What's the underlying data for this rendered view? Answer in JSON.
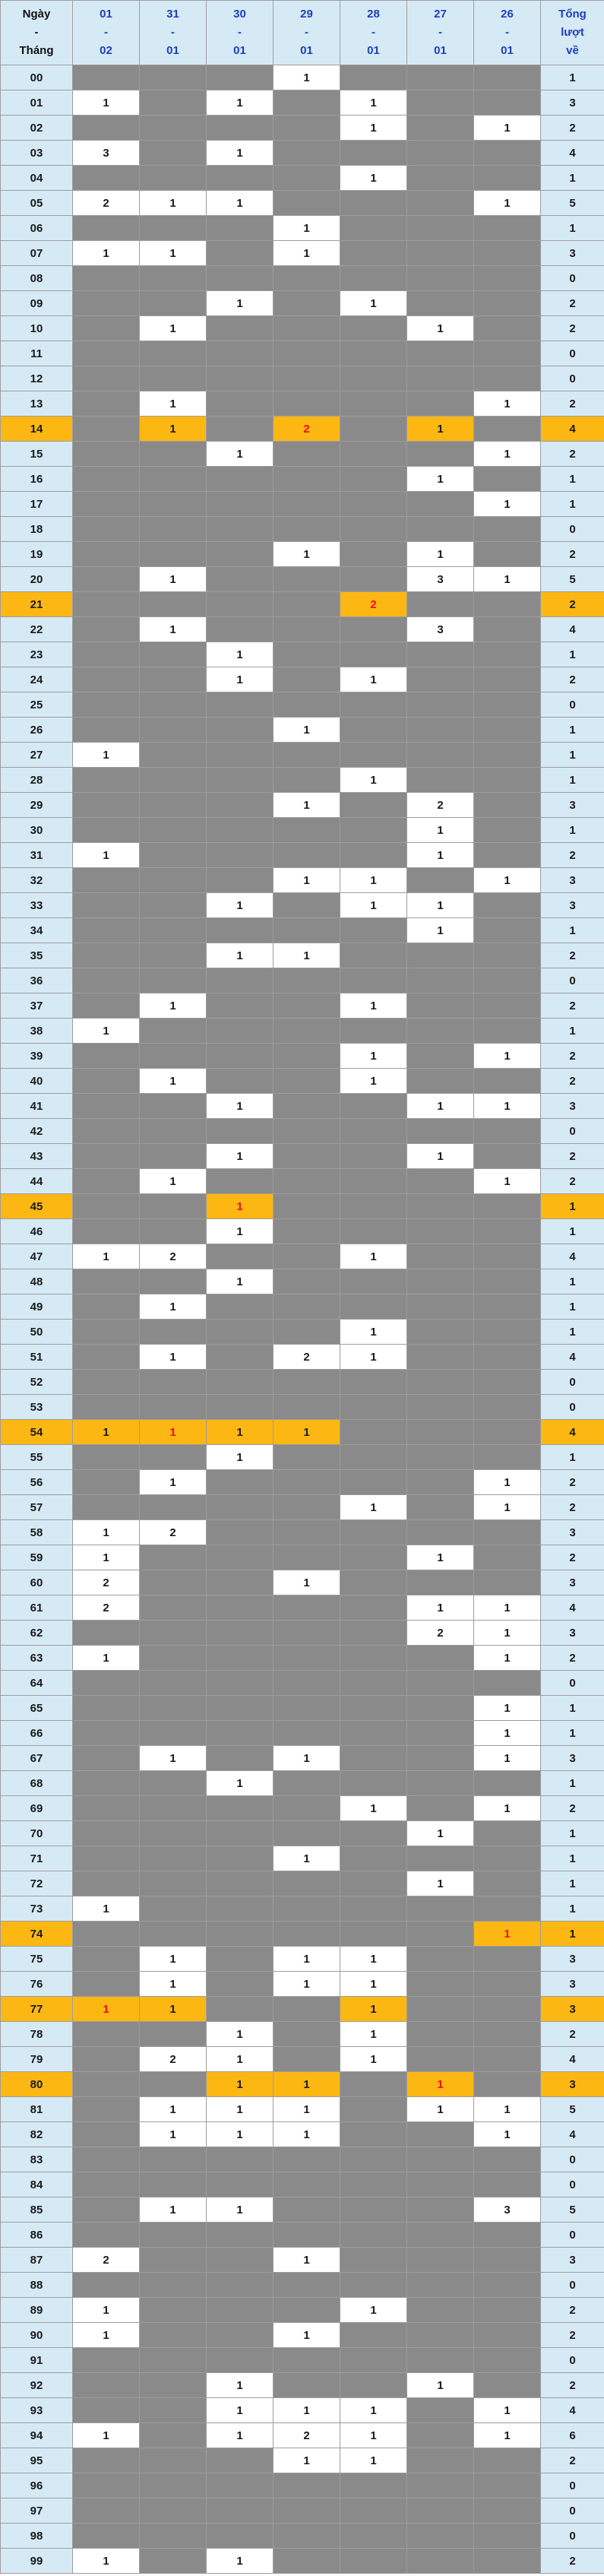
{
  "header": {
    "corner": {
      "line1": "Ngày",
      "line2": "-",
      "line3": "Tháng"
    },
    "dates": [
      {
        "day": "01",
        "sep": "-",
        "month": "02"
      },
      {
        "day": "31",
        "sep": "-",
        "month": "01"
      },
      {
        "day": "30",
        "sep": "-",
        "month": "01"
      },
      {
        "day": "29",
        "sep": "-",
        "month": "01"
      },
      {
        "day": "28",
        "sep": "-",
        "month": "01"
      },
      {
        "day": "27",
        "sep": "-",
        "month": "01"
      },
      {
        "day": "26",
        "sep": "-",
        "month": "01"
      }
    ],
    "total": {
      "line1": "Tổng",
      "line2": "lượt",
      "line3": "về"
    }
  },
  "colors": {
    "lightblue": "#d6eaf6",
    "gray": "#8a8a8a",
    "orange": "#fdb713",
    "red": "#f20d0d",
    "blue": "#1d3ebc"
  },
  "rows": [
    {
      "label": "00",
      "cells": [
        "",
        "",
        "",
        "1",
        "",
        "",
        ""
      ],
      "total": "1"
    },
    {
      "label": "01",
      "cells": [
        "1",
        "",
        "1",
        "",
        "1",
        "",
        ""
      ],
      "total": "3"
    },
    {
      "label": "02",
      "cells": [
        "",
        "",
        "",
        "",
        "1",
        "",
        "1"
      ],
      "total": "2"
    },
    {
      "label": "03",
      "cells": [
        "3",
        "",
        "1",
        "",
        "",
        "",
        ""
      ],
      "total": "4"
    },
    {
      "label": "04",
      "cells": [
        "",
        "",
        "",
        "",
        "1",
        "",
        ""
      ],
      "total": "1"
    },
    {
      "label": "05",
      "cells": [
        "2",
        "1",
        "1",
        "",
        "",
        "",
        "1"
      ],
      "total": "5"
    },
    {
      "label": "06",
      "cells": [
        "",
        "",
        "",
        "1",
        "",
        "",
        ""
      ],
      "total": "1"
    },
    {
      "label": "07",
      "cells": [
        "1",
        "1",
        "",
        "1",
        "",
        "",
        ""
      ],
      "total": "3"
    },
    {
      "label": "08",
      "cells": [
        "",
        "",
        "",
        "",
        "",
        "",
        ""
      ],
      "total": "0"
    },
    {
      "label": "09",
      "cells": [
        "",
        "",
        "1",
        "",
        "1",
        "",
        ""
      ],
      "total": "2"
    },
    {
      "label": "10",
      "cells": [
        "",
        "1",
        "",
        "",
        "",
        "1",
        ""
      ],
      "total": "2"
    },
    {
      "label": "11",
      "cells": [
        "",
        "",
        "",
        "",
        "",
        "",
        ""
      ],
      "total": "0"
    },
    {
      "label": "12",
      "cells": [
        "",
        "",
        "",
        "",
        "",
        "",
        ""
      ],
      "total": "0"
    },
    {
      "label": "13",
      "cells": [
        "",
        "1",
        "",
        "",
        "",
        "",
        "1"
      ],
      "total": "2"
    },
    {
      "label": "14",
      "cells": [
        "",
        "1",
        "",
        "2",
        "",
        "1",
        ""
      ],
      "total": "4",
      "highlight": true,
      "red": 4
    },
    {
      "label": "15",
      "cells": [
        "",
        "",
        "1",
        "",
        "",
        "",
        "1"
      ],
      "total": "2"
    },
    {
      "label": "16",
      "cells": [
        "",
        "",
        "",
        "",
        "",
        "1",
        ""
      ],
      "total": "1"
    },
    {
      "label": "17",
      "cells": [
        "",
        "",
        "",
        "",
        "",
        "",
        "1"
      ],
      "total": "1"
    },
    {
      "label": "18",
      "cells": [
        "",
        "",
        "",
        "",
        "",
        "",
        ""
      ],
      "total": "0"
    },
    {
      "label": "19",
      "cells": [
        "",
        "",
        "",
        "1",
        "",
        "1",
        ""
      ],
      "total": "2"
    },
    {
      "label": "20",
      "cells": [
        "",
        "1",
        "",
        "",
        "",
        "3",
        "1"
      ],
      "total": "5"
    },
    {
      "label": "21",
      "cells": [
        "",
        "",
        "",
        "",
        "2",
        "",
        ""
      ],
      "total": "2",
      "highlight": true,
      "red": 5
    },
    {
      "label": "22",
      "cells": [
        "",
        "1",
        "",
        "",
        "",
        "3",
        ""
      ],
      "total": "4"
    },
    {
      "label": "23",
      "cells": [
        "",
        "",
        "1",
        "",
        "",
        "",
        ""
      ],
      "total": "1"
    },
    {
      "label": "24",
      "cells": [
        "",
        "",
        "1",
        "",
        "1",
        "",
        ""
      ],
      "total": "2"
    },
    {
      "label": "25",
      "cells": [
        "",
        "",
        "",
        "",
        "",
        "",
        ""
      ],
      "total": "0"
    },
    {
      "label": "26",
      "cells": [
        "",
        "",
        "",
        "1",
        "",
        "",
        ""
      ],
      "total": "1"
    },
    {
      "label": "27",
      "cells": [
        "1",
        "",
        "",
        "",
        "",
        "",
        ""
      ],
      "total": "1"
    },
    {
      "label": "28",
      "cells": [
        "",
        "",
        "",
        "",
        "1",
        "",
        ""
      ],
      "total": "1"
    },
    {
      "label": "29",
      "cells": [
        "",
        "",
        "",
        "1",
        "",
        "2",
        ""
      ],
      "total": "3"
    },
    {
      "label": "30",
      "cells": [
        "",
        "",
        "",
        "",
        "",
        "1",
        ""
      ],
      "total": "1"
    },
    {
      "label": "31",
      "cells": [
        "1",
        "",
        "",
        "",
        "",
        "1",
        ""
      ],
      "total": "2"
    },
    {
      "label": "32",
      "cells": [
        "",
        "",
        "",
        "1",
        "1",
        "",
        "1"
      ],
      "total": "3"
    },
    {
      "label": "33",
      "cells": [
        "",
        "",
        "1",
        "",
        "1",
        "1",
        ""
      ],
      "total": "3"
    },
    {
      "label": "34",
      "cells": [
        "",
        "",
        "",
        "",
        "",
        "1",
        ""
      ],
      "total": "1"
    },
    {
      "label": "35",
      "cells": [
        "",
        "",
        "1",
        "1",
        "",
        "",
        ""
      ],
      "total": "2"
    },
    {
      "label": "36",
      "cells": [
        "",
        "",
        "",
        "",
        "",
        "",
        ""
      ],
      "total": "0"
    },
    {
      "label": "37",
      "cells": [
        "",
        "1",
        "",
        "",
        "1",
        "",
        ""
      ],
      "total": "2"
    },
    {
      "label": "38",
      "cells": [
        "1",
        "",
        "",
        "",
        "",
        "",
        ""
      ],
      "total": "1"
    },
    {
      "label": "39",
      "cells": [
        "",
        "",
        "",
        "",
        "1",
        "",
        "1"
      ],
      "total": "2"
    },
    {
      "label": "40",
      "cells": [
        "",
        "1",
        "",
        "",
        "1",
        "",
        ""
      ],
      "total": "2"
    },
    {
      "label": "41",
      "cells": [
        "",
        "",
        "1",
        "",
        "",
        "1",
        "1"
      ],
      "total": "3"
    },
    {
      "label": "42",
      "cells": [
        "",
        "",
        "",
        "",
        "",
        "",
        ""
      ],
      "total": "0"
    },
    {
      "label": "43",
      "cells": [
        "",
        "",
        "1",
        "",
        "",
        "1",
        ""
      ],
      "total": "2"
    },
    {
      "label": "44",
      "cells": [
        "",
        "1",
        "",
        "",
        "",
        "",
        "1"
      ],
      "total": "2"
    },
    {
      "label": "45",
      "cells": [
        "",
        "",
        "1",
        "",
        "",
        "",
        ""
      ],
      "total": "1",
      "highlight": true,
      "red": 3
    },
    {
      "label": "46",
      "cells": [
        "",
        "",
        "1",
        "",
        "",
        "",
        ""
      ],
      "total": "1"
    },
    {
      "label": "47",
      "cells": [
        "1",
        "2",
        "",
        "",
        "1",
        "",
        ""
      ],
      "total": "4"
    },
    {
      "label": "48",
      "cells": [
        "",
        "",
        "1",
        "",
        "",
        "",
        ""
      ],
      "total": "1"
    },
    {
      "label": "49",
      "cells": [
        "",
        "1",
        "",
        "",
        "",
        "",
        ""
      ],
      "total": "1"
    },
    {
      "label": "50",
      "cells": [
        "",
        "",
        "",
        "",
        "1",
        "",
        ""
      ],
      "total": "1"
    },
    {
      "label": "51",
      "cells": [
        "",
        "1",
        "",
        "2",
        "1",
        "",
        ""
      ],
      "total": "4"
    },
    {
      "label": "52",
      "cells": [
        "",
        "",
        "",
        "",
        "",
        "",
        ""
      ],
      "total": "0"
    },
    {
      "label": "53",
      "cells": [
        "",
        "",
        "",
        "",
        "",
        "",
        ""
      ],
      "total": "0"
    },
    {
      "label": "54",
      "cells": [
        "1",
        "1",
        "1",
        "1",
        "",
        "",
        ""
      ],
      "total": "4",
      "highlight": true,
      "red": 2
    },
    {
      "label": "55",
      "cells": [
        "",
        "",
        "1",
        "",
        "",
        "",
        ""
      ],
      "total": "1"
    },
    {
      "label": "56",
      "cells": [
        "",
        "1",
        "",
        "",
        "",
        "",
        "1"
      ],
      "total": "2"
    },
    {
      "label": "57",
      "cells": [
        "",
        "",
        "",
        "",
        "1",
        "",
        "1"
      ],
      "total": "2"
    },
    {
      "label": "58",
      "cells": [
        "1",
        "2",
        "",
        "",
        "",
        "",
        ""
      ],
      "total": "3"
    },
    {
      "label": "59",
      "cells": [
        "1",
        "",
        "",
        "",
        "",
        "1",
        ""
      ],
      "total": "2"
    },
    {
      "label": "60",
      "cells": [
        "2",
        "",
        "",
        "1",
        "",
        "",
        ""
      ],
      "total": "3"
    },
    {
      "label": "61",
      "cells": [
        "2",
        "",
        "",
        "",
        "",
        "1",
        "1"
      ],
      "total": "4"
    },
    {
      "label": "62",
      "cells": [
        "",
        "",
        "",
        "",
        "",
        "2",
        "1"
      ],
      "total": "3"
    },
    {
      "label": "63",
      "cells": [
        "1",
        "",
        "",
        "",
        "",
        "",
        "1"
      ],
      "total": "2"
    },
    {
      "label": "64",
      "cells": [
        "",
        "",
        "",
        "",
        "",
        "",
        ""
      ],
      "total": "0"
    },
    {
      "label": "65",
      "cells": [
        "",
        "",
        "",
        "",
        "",
        "",
        "1"
      ],
      "total": "1"
    },
    {
      "label": "66",
      "cells": [
        "",
        "",
        "",
        "",
        "",
        "",
        "1"
      ],
      "total": "1"
    },
    {
      "label": "67",
      "cells": [
        "",
        "1",
        "",
        "1",
        "",
        "",
        "1"
      ],
      "total": "3"
    },
    {
      "label": "68",
      "cells": [
        "",
        "",
        "1",
        "",
        "",
        "",
        ""
      ],
      "total": "1"
    },
    {
      "label": "69",
      "cells": [
        "",
        "",
        "",
        "",
        "1",
        "",
        "1"
      ],
      "total": "2"
    },
    {
      "label": "70",
      "cells": [
        "",
        "",
        "",
        "",
        "",
        "1",
        ""
      ],
      "total": "1"
    },
    {
      "label": "71",
      "cells": [
        "",
        "",
        "",
        "1",
        "",
        "",
        ""
      ],
      "total": "1"
    },
    {
      "label": "72",
      "cells": [
        "",
        "",
        "",
        "",
        "",
        "1",
        ""
      ],
      "total": "1"
    },
    {
      "label": "73",
      "cells": [
        "1",
        "",
        "",
        "",
        "",
        "",
        ""
      ],
      "total": "1"
    },
    {
      "label": "74",
      "cells": [
        "",
        "",
        "",
        "",
        "",
        "",
        "1"
      ],
      "total": "1",
      "highlight": true,
      "red": 7
    },
    {
      "label": "75",
      "cells": [
        "",
        "1",
        "",
        "1",
        "1",
        "",
        ""
      ],
      "total": "3"
    },
    {
      "label": "76",
      "cells": [
        "",
        "1",
        "",
        "1",
        "1",
        "",
        ""
      ],
      "total": "3"
    },
    {
      "label": "77",
      "cells": [
        "1",
        "1",
        "",
        "",
        "1",
        "",
        ""
      ],
      "total": "3",
      "highlight": true,
      "red": 1
    },
    {
      "label": "78",
      "cells": [
        "",
        "",
        "1",
        "",
        "1",
        "",
        ""
      ],
      "total": "2"
    },
    {
      "label": "79",
      "cells": [
        "",
        "2",
        "1",
        "",
        "1",
        "",
        ""
      ],
      "total": "4"
    },
    {
      "label": "80",
      "cells": [
        "",
        "",
        "1",
        "1",
        "",
        "1",
        ""
      ],
      "total": "3",
      "highlight": true,
      "red": 6
    },
    {
      "label": "81",
      "cells": [
        "",
        "1",
        "1",
        "1",
        "",
        "1",
        "1"
      ],
      "total": "5"
    },
    {
      "label": "82",
      "cells": [
        "",
        "1",
        "1",
        "1",
        "",
        "",
        "1"
      ],
      "total": "4"
    },
    {
      "label": "83",
      "cells": [
        "",
        "",
        "",
        "",
        "",
        "",
        ""
      ],
      "total": "0"
    },
    {
      "label": "84",
      "cells": [
        "",
        "",
        "",
        "",
        "",
        "",
        ""
      ],
      "total": "0"
    },
    {
      "label": "85",
      "cells": [
        "",
        "1",
        "1",
        "",
        "",
        "",
        "3"
      ],
      "total": "5"
    },
    {
      "label": "86",
      "cells": [
        "",
        "",
        "",
        "",
        "",
        "",
        ""
      ],
      "total": "0"
    },
    {
      "label": "87",
      "cells": [
        "2",
        "",
        "",
        "1",
        "",
        "",
        ""
      ],
      "total": "3"
    },
    {
      "label": "88",
      "cells": [
        "",
        "",
        "",
        "",
        "",
        "",
        ""
      ],
      "total": "0"
    },
    {
      "label": "89",
      "cells": [
        "1",
        "",
        "",
        "",
        "1",
        "",
        ""
      ],
      "total": "2"
    },
    {
      "label": "90",
      "cells": [
        "1",
        "",
        "",
        "1",
        "",
        "",
        ""
      ],
      "total": "2"
    },
    {
      "label": "91",
      "cells": [
        "",
        "",
        "",
        "",
        "",
        "",
        ""
      ],
      "total": "0"
    },
    {
      "label": "92",
      "cells": [
        "",
        "",
        "1",
        "",
        "",
        "1",
        ""
      ],
      "total": "2"
    },
    {
      "label": "93",
      "cells": [
        "",
        "",
        "1",
        "1",
        "1",
        "",
        "1"
      ],
      "total": "4"
    },
    {
      "label": "94",
      "cells": [
        "1",
        "",
        "1",
        "2",
        "1",
        "",
        "1"
      ],
      "total": "6"
    },
    {
      "label": "95",
      "cells": [
        "",
        "",
        "",
        "1",
        "1",
        "",
        ""
      ],
      "total": "2"
    },
    {
      "label": "96",
      "cells": [
        "",
        "",
        "",
        "",
        "",
        "",
        ""
      ],
      "total": "0"
    },
    {
      "label": "97",
      "cells": [
        "",
        "",
        "",
        "",
        "",
        "",
        ""
      ],
      "total": "0"
    },
    {
      "label": "98",
      "cells": [
        "",
        "",
        "",
        "",
        "",
        "",
        ""
      ],
      "total": "0"
    },
    {
      "label": "99",
      "cells": [
        "1",
        "",
        "1",
        "",
        "",
        "",
        ""
      ],
      "total": "2"
    }
  ]
}
